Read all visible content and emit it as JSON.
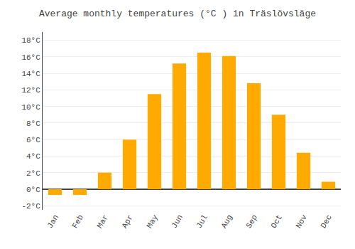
{
  "chart_data": {
    "type": "bar",
    "title": "Average monthly temperatures (°C ) in Träslövsläge",
    "categories": [
      "Jan",
      "Feb",
      "Mar",
      "Apr",
      "May",
      "Jun",
      "Jul",
      "Aug",
      "Sep",
      "Oct",
      "Nov",
      "Dec"
    ],
    "values": [
      -0.7,
      -0.7,
      2.0,
      6.0,
      11.5,
      15.2,
      16.5,
      16.1,
      12.8,
      9.0,
      4.4,
      0.9
    ],
    "color": "#FFAA00",
    "ylim": [
      -2.5,
      19
    ],
    "yticks": [
      {
        "value": -2,
        "label": "-2°C"
      },
      {
        "value": 0,
        "label": "0°C"
      },
      {
        "value": 2,
        "label": "2°C"
      },
      {
        "value": 4,
        "label": "4°C"
      },
      {
        "value": 6,
        "label": "6°C"
      },
      {
        "value": 8,
        "label": "8°C"
      },
      {
        "value": 10,
        "label": "10°C"
      },
      {
        "value": 12,
        "label": "12°C"
      },
      {
        "value": 14,
        "label": "14°C"
      },
      {
        "value": 16,
        "label": "16°C"
      },
      {
        "value": 18,
        "label": "18°C"
      }
    ],
    "grid": true
  }
}
